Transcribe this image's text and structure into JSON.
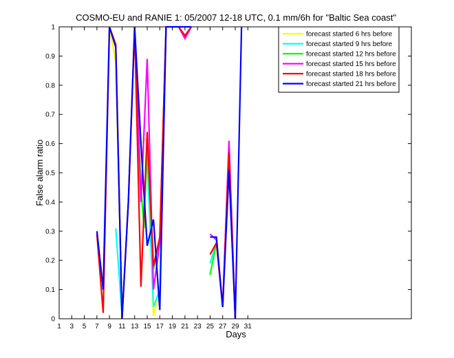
{
  "chart_data": {
    "type": "line",
    "title": "COSMO-EU and RANIE 1: 05/2007 12-18 UTC, 0.1 mm/6h for \"Baltic Sea coast\"",
    "xlabel": "Days",
    "ylabel": "False alarm ratio",
    "xlim": [
      1,
      57
    ],
    "ylim": [
      0,
      1
    ],
    "xticks": [
      1,
      3,
      5,
      7,
      9,
      11,
      13,
      15,
      17,
      19,
      21,
      23,
      25,
      27,
      29,
      31
    ],
    "yticks": [
      0,
      0.1,
      0.2,
      0.3,
      0.4,
      0.5,
      0.6,
      0.7,
      0.8,
      0.9,
      1
    ],
    "ytick_labels": [
      "0",
      "0.1",
      "0.2",
      "0.3",
      "0.4",
      "0.5",
      "0.6",
      "0.7",
      "0.8",
      "0.9",
      "1"
    ],
    "legend_position": "top-right",
    "grid": false,
    "series": [
      {
        "name": "forecast started 6 hrs before",
        "color": "#ffff00",
        "segments": [
          [
            [
              9,
              1.0
            ],
            [
              10,
              0.88
            ],
            [
              11,
              0.0
            ],
            [
              12,
              0.4
            ],
            [
              13,
              1.0
            ],
            [
              14,
              0.6
            ],
            [
              15,
              0.62
            ],
            [
              16,
              0.01
            ],
            [
              17,
              0.1
            ],
            [
              18,
              1.0
            ]
          ]
        ]
      },
      {
        "name": "forecast started 9 hrs before",
        "color": "#00ffff",
        "segments": [
          [
            [
              10,
              0.31
            ],
            [
              11,
              0.01
            ]
          ],
          [
            [
              15,
              0.55
            ],
            [
              16,
              0.04
            ],
            [
              17,
              0.1
            ],
            [
              18,
              1.0
            ]
          ],
          [
            [
              25,
              0.19
            ],
            [
              26,
              0.26
            ]
          ]
        ]
      },
      {
        "name": "forecast started 12 hrs before",
        "color": "#00ff00",
        "segments": [
          [
            [
              13,
              1.0
            ],
            [
              14,
              0.45
            ],
            [
              14.5,
              0.31
            ],
            [
              15,
              0.6
            ],
            [
              16,
              0.17
            ],
            [
              17,
              0.27
            ],
            [
              18,
              1.0
            ]
          ],
          [
            [
              25,
              0.15
            ],
            [
              26,
              0.26
            ]
          ]
        ]
      },
      {
        "name": "forecast started 15 hrs before",
        "color": "#ff00ff",
        "segments": [
          [
            [
              13,
              1.0
            ],
            [
              14,
              0.4
            ],
            [
              15,
              0.89
            ],
            [
              16,
              0.1
            ],
            [
              17,
              0.26
            ],
            [
              18,
              1.0
            ]
          ],
          [
            [
              20,
              1.0
            ],
            [
              21,
              0.96
            ],
            [
              22,
              1.0
            ]
          ],
          [
            [
              25,
              0.29
            ],
            [
              26,
              0.27
            ],
            [
              27,
              0.04
            ],
            [
              28,
              0.61
            ],
            [
              29,
              0.0
            ]
          ]
        ]
      },
      {
        "name": "forecast started 18 hrs before",
        "color": "#ff0000",
        "segments": [
          [
            [
              7,
              0.29
            ],
            [
              8,
              0.02
            ],
            [
              9,
              1.0
            ],
            [
              10,
              0.94
            ],
            [
              11,
              0.0
            ],
            [
              12,
              0.4
            ],
            [
              13,
              1.0
            ],
            [
              14,
              0.11
            ],
            [
              15,
              0.64
            ],
            [
              16,
              0.18
            ],
            [
              17,
              0.28
            ],
            [
              18,
              1.0
            ]
          ],
          [
            [
              20,
              1.0
            ],
            [
              21,
              0.97
            ],
            [
              22,
              1.0
            ]
          ],
          [
            [
              25,
              0.22
            ],
            [
              26,
              0.26
            ],
            [
              27,
              0.04
            ],
            [
              28,
              0.57
            ],
            [
              29,
              0.0
            ]
          ]
        ]
      },
      {
        "name": "forecast started 21 hrs before",
        "color": "#0000ff",
        "segments": [
          [
            [
              7,
              0.3
            ],
            [
              8,
              0.1
            ],
            [
              9,
              1.0
            ],
            [
              10,
              0.93
            ],
            [
              11,
              0.0
            ],
            [
              12,
              0.4
            ],
            [
              13,
              1.0
            ],
            [
              14,
              0.6
            ],
            [
              15,
              0.25
            ],
            [
              16,
              0.34
            ],
            [
              17,
              0.03
            ],
            [
              18,
              1.0
            ],
            [
              19,
              1.0
            ],
            [
              20,
              1.0
            ],
            [
              21,
              1.0
            ],
            [
              22,
              1.0
            ]
          ],
          [
            [
              25,
              0.28
            ],
            [
              26,
              0.28
            ],
            [
              27,
              0.04
            ],
            [
              28,
              0.51
            ],
            [
              29,
              0.0
            ],
            [
              30,
              1.0
            ]
          ]
        ]
      }
    ]
  }
}
